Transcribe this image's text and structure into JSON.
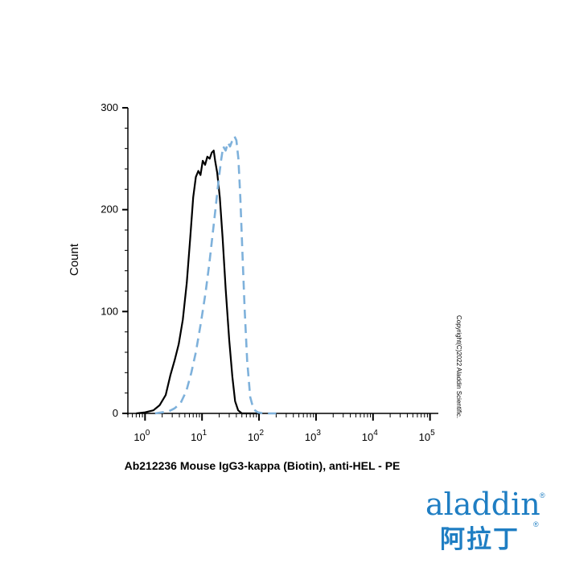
{
  "chart_data": {
    "type": "line",
    "title": "",
    "xlabel": "Ab212236 Mouse IgG3-kappa (Biotin), anti-HEL - PE",
    "ylabel": "Count",
    "x_scale": "log",
    "xlim": [
      0.5,
      140000
    ],
    "ylim": [
      0,
      300
    ],
    "y_ticks": [
      0,
      100,
      200,
      300
    ],
    "x_ticks": [
      {
        "base": "10",
        "exp": "0",
        "value": 1
      },
      {
        "base": "10",
        "exp": "1",
        "value": 10
      },
      {
        "base": "10",
        "exp": "2",
        "value": 100
      },
      {
        "base": "10",
        "exp": "3",
        "value": 1000
      },
      {
        "base": "10",
        "exp": "4",
        "value": 10000
      },
      {
        "base": "10",
        "exp": "5",
        "value": 100000
      }
    ],
    "grid": false,
    "series": [
      {
        "style": "solid",
        "color": "#000000",
        "points": [
          [
            0.7,
            0
          ],
          [
            1.0,
            1
          ],
          [
            1.4,
            3
          ],
          [
            1.8,
            8
          ],
          [
            2.3,
            18
          ],
          [
            2.8,
            38
          ],
          [
            3.3,
            52
          ],
          [
            3.9,
            68
          ],
          [
            4.6,
            92
          ],
          [
            5.4,
            128
          ],
          [
            6.2,
            172
          ],
          [
            7.0,
            212
          ],
          [
            7.8,
            232
          ],
          [
            8.6,
            238
          ],
          [
            9.4,
            234
          ],
          [
            10.3,
            248
          ],
          [
            11.3,
            244
          ],
          [
            12.4,
            252
          ],
          [
            13.6,
            250
          ],
          [
            14.8,
            256
          ],
          [
            16.0,
            258
          ],
          [
            17.0,
            248
          ],
          [
            18.5,
            236
          ],
          [
            20.5,
            212
          ],
          [
            23.0,
            172
          ],
          [
            26.0,
            122
          ],
          [
            30.0,
            72
          ],
          [
            34.0,
            36
          ],
          [
            38.0,
            12
          ],
          [
            43.0,
            3
          ],
          [
            50.0,
            0
          ],
          [
            60.0,
            0
          ],
          [
            100.0,
            0
          ]
        ]
      },
      {
        "style": "dashed",
        "color": "#7eb1db",
        "points": [
          [
            1.5,
            0
          ],
          [
            2.0,
            1
          ],
          [
            2.6,
            2
          ],
          [
            3.3,
            5
          ],
          [
            4.2,
            10
          ],
          [
            5.3,
            22
          ],
          [
            6.5,
            40
          ],
          [
            7.8,
            60
          ],
          [
            9.5,
            88
          ],
          [
            11.5,
            118
          ],
          [
            13.5,
            148
          ],
          [
            15.5,
            178
          ],
          [
            17.5,
            204
          ],
          [
            19.5,
            228
          ],
          [
            21.5,
            248
          ],
          [
            23.5,
            262
          ],
          [
            26.0,
            258
          ],
          [
            28.5,
            266
          ],
          [
            31.0,
            262
          ],
          [
            34.0,
            268
          ],
          [
            37.0,
            272
          ],
          [
            40.0,
            268
          ],
          [
            43.5,
            250
          ],
          [
            47.0,
            212
          ],
          [
            51.0,
            160
          ],
          [
            56.0,
            102
          ],
          [
            62.0,
            52
          ],
          [
            70.0,
            16
          ],
          [
            80.0,
            4
          ],
          [
            95.0,
            1
          ],
          [
            120.0,
            0
          ],
          [
            200.0,
            0
          ]
        ]
      }
    ]
  },
  "copyright": "Copyright(C)2022 Aladdin Scientific.",
  "logo": {
    "word": "aladdin",
    "reg": "®",
    "chinese": "阿拉丁",
    "reg2": "®"
  },
  "colors": {
    "axis": "#000000",
    "dashed_series": "#7eb1db",
    "brand": "#1f7ec3"
  }
}
